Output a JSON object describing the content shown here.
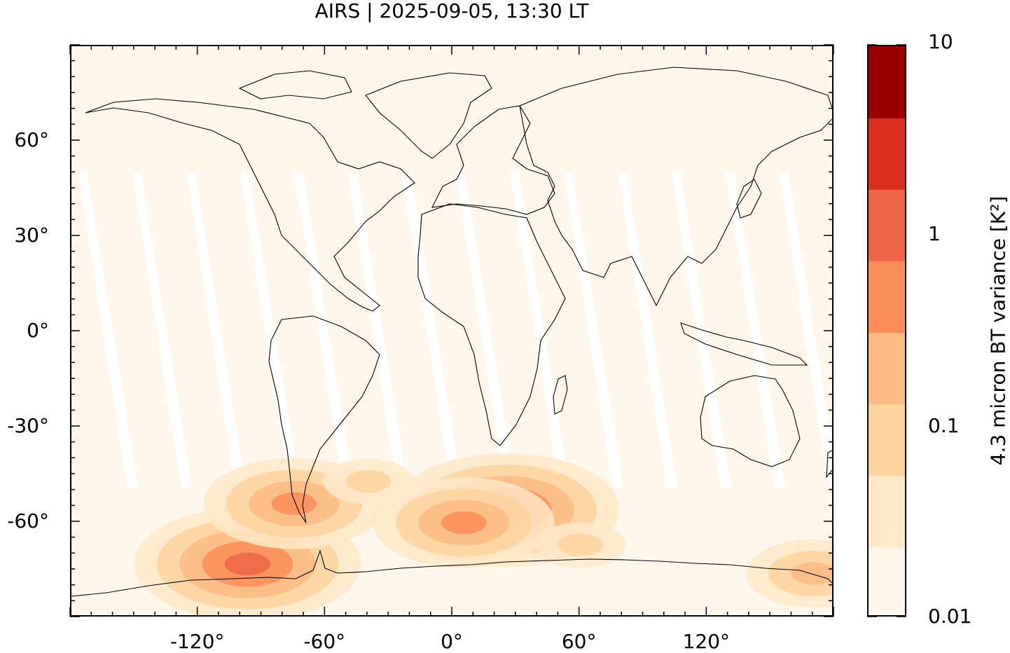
{
  "title": "AIRS | 2025-09-05, 13:30 LT",
  "map": {
    "projection": "equirectangular",
    "lon_range": [
      -180,
      180
    ],
    "lat_range": [
      -90,
      90
    ],
    "background_color": "#fff7ec",
    "coastline_color": "#000000",
    "lat_ticks": [
      {
        "value": 60,
        "label": "60°"
      },
      {
        "value": 30,
        "label": "30°"
      },
      {
        "value": 0,
        "label": "0°"
      },
      {
        "value": -30,
        "label": "-30°"
      },
      {
        "value": -60,
        "label": "-60°"
      }
    ],
    "lon_ticks": [
      {
        "value": -120,
        "label": "-120°"
      },
      {
        "value": -60,
        "label": "-60°"
      },
      {
        "value": 0,
        "label": "0°"
      },
      {
        "value": 60,
        "label": "60°"
      },
      {
        "value": 120,
        "label": "120°"
      }
    ],
    "hotspots": [
      {
        "lon": -97,
        "lat": -73,
        "level": 4
      },
      {
        "lon": 25,
        "lat": -56,
        "level": 4
      },
      {
        "lon": 5,
        "lat": -60,
        "level": 3
      },
      {
        "lon": -75,
        "lat": -54,
        "level": 3
      },
      {
        "lon": 170,
        "lat": -76,
        "level": 2
      },
      {
        "lon": -40,
        "lat": -47,
        "level": 1
      },
      {
        "lon": 60,
        "lat": -67,
        "level": 1
      }
    ]
  },
  "colorbar": {
    "label": "4.3 micron BT variance [K²]",
    "scale": "log",
    "range": [
      0.01,
      10
    ],
    "tick_labels": [
      {
        "value": 10,
        "label": "10"
      },
      {
        "value": 1,
        "label": "1"
      },
      {
        "value": 0.1,
        "label": "0.1"
      },
      {
        "value": 0.01,
        "label": "0.01"
      }
    ],
    "colors": [
      "#fff7ec",
      "#fee8c8",
      "#fdd49e",
      "#fdbb84",
      "#fc8d59",
      "#ef6548",
      "#d7301f",
      "#990000"
    ]
  }
}
